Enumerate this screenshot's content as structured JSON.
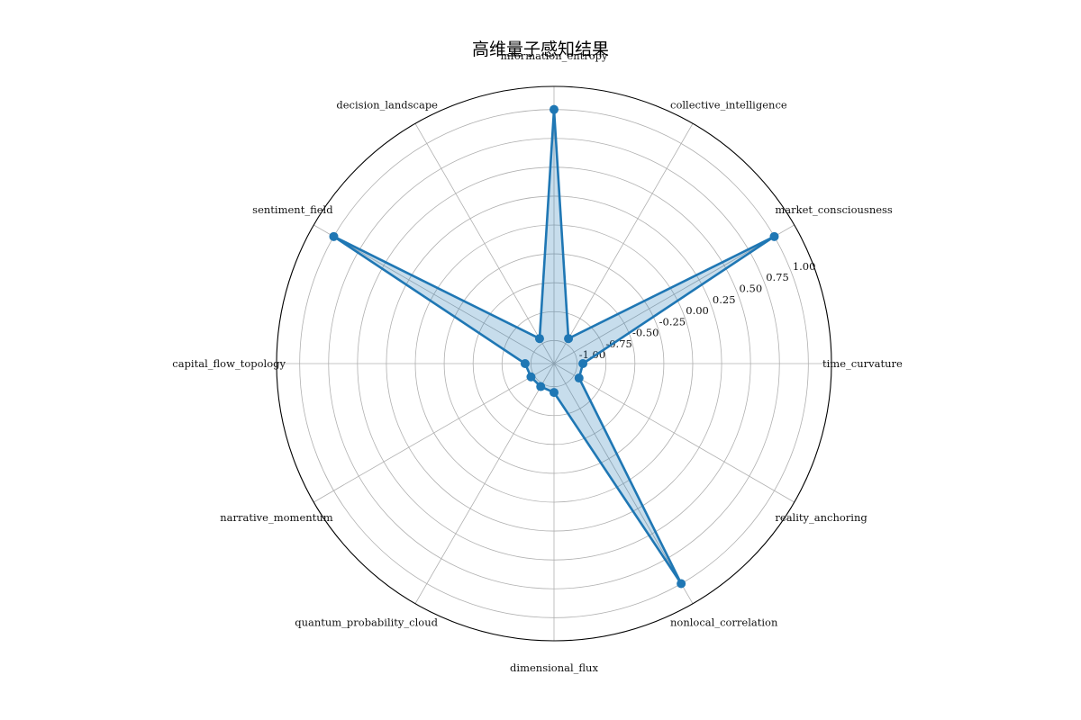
{
  "chart_data": {
    "type": "radar",
    "title": "高维量子感知结果",
    "categories": [
      "market_consciousness",
      "collective_intelligence",
      "information_entropy",
      "decision_landscape",
      "sentiment_field",
      "capital_flow_topology",
      "narrative_momentum",
      "quantum_probability_cloud",
      "dimensional_flux",
      "nonlocal_correlation",
      "reality_anchoring",
      "time_curvature"
    ],
    "category_angles_deg": [
      30,
      60,
      90,
      120,
      150,
      180,
      210,
      240,
      270,
      300,
      330,
      0
    ],
    "series": [
      {
        "values": [
          1.0,
          -0.95,
          1.0,
          -0.95,
          1.0,
          -0.95,
          -0.97,
          -0.97,
          -0.95,
          1.0,
          -0.95,
          -0.95
        ]
      }
    ],
    "r_range": [
      -1.2,
      1.2
    ],
    "r_ticks": [
      -1.0,
      -0.75,
      -0.5,
      -0.25,
      0.0,
      0.25,
      0.5,
      0.75,
      1.0
    ],
    "r_tick_labels": [
      "-1.00",
      "-0.75",
      "-0.50",
      "-0.25",
      "0.00",
      "0.25",
      "0.50",
      "0.75",
      "1.00"
    ],
    "grid": true,
    "color": "#1f77b4"
  }
}
